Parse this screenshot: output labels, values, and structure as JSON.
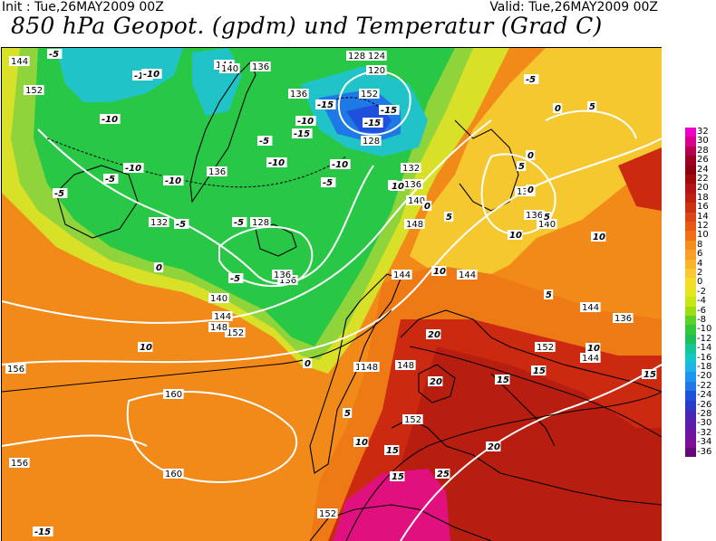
{
  "header": {
    "init": "Init : Tue,26MAY2009 00Z",
    "valid": "Valid: Tue,26MAY2009 00Z",
    "title": "850 hPa Geopot. (gpdm) und Temperatur (Grad C)"
  },
  "legend": {
    "ticks": [
      "32",
      "30",
      "28",
      "26",
      "24",
      "22",
      "20",
      "18",
      "16",
      "14",
      "12",
      "10",
      "8",
      "6",
      "4",
      "2",
      "0",
      "-2",
      "-4",
      "-6",
      "-8",
      "-10",
      "-12",
      "-14",
      "-16",
      "-18",
      "-20",
      "-22",
      "-24",
      "-26",
      "-28",
      "-30",
      "-32",
      "-34",
      "-36"
    ],
    "colors": [
      "#f000c8",
      "#d8008c",
      "#b40050",
      "#9c0020",
      "#8c0010",
      "#a00a0a",
      "#b41414",
      "#c02010",
      "#cc3210",
      "#dc4614",
      "#e65a14",
      "#f06e14",
      "#f58c1e",
      "#faa028",
      "#fab428",
      "#fac832",
      "#f5dc28",
      "#e6e61e",
      "#c8e614",
      "#a0dc14",
      "#5ad228",
      "#32c83c",
      "#1ebe5a",
      "#14c896",
      "#14c8c8",
      "#1eb4e6",
      "#1e96f0",
      "#1e78e6",
      "#1e50dc",
      "#283cc8",
      "#4628b4",
      "#5a1eaa",
      "#6e14a0",
      "#7d0f96",
      "#640a78"
    ]
  },
  "map": {
    "colors": {
      "orange": "#f28a1a",
      "deep_orange": "#ee7a16",
      "red": "#cc2a10",
      "dark_red": "#b81e10",
      "magenta": "#e0107e",
      "yellow": "#f5c830",
      "yellow_green": "#d8e028",
      "light_green": "#8ed43a",
      "green": "#28c846",
      "cyan": "#20c4c8",
      "blue": "#1e78e6",
      "dark_blue": "#1e50dc",
      "coast": "#000000",
      "contour": "#ffffff"
    },
    "height_labels": [
      "144",
      "152",
      "144",
      "140",
      "136",
      "128",
      "124",
      "120",
      "136",
      "152",
      "128",
      "132",
      "136",
      "140",
      "148",
      "144",
      "156",
      "160",
      "152",
      "148",
      "144",
      "152",
      "160",
      "156",
      "152",
      "148",
      "136",
      "132",
      "136",
      "140",
      "148",
      "148",
      "144",
      "152",
      "128",
      "136",
      "132",
      "136",
      "144",
      "152",
      "136",
      "144",
      "140"
    ],
    "temp_labels": [
      "-5",
      "-10",
      "-10",
      "-5",
      "-10",
      "-5",
      "-10",
      "-15",
      "-10",
      "-15",
      "-15",
      "-15",
      "-5",
      "-10",
      "-10",
      "-5",
      "-5",
      "-10",
      "-5",
      "0",
      "0",
      "0",
      "-5",
      "0",
      "5",
      "10",
      "10",
      "15",
      "20",
      "20",
      "20",
      "25",
      "15",
      "15",
      "10",
      "5",
      "0",
      "5",
      "10",
      "15",
      "15",
      "5",
      "5",
      "10",
      "10",
      "5",
      "0",
      "-5",
      "5",
      "10",
      "-15"
    ]
  }
}
